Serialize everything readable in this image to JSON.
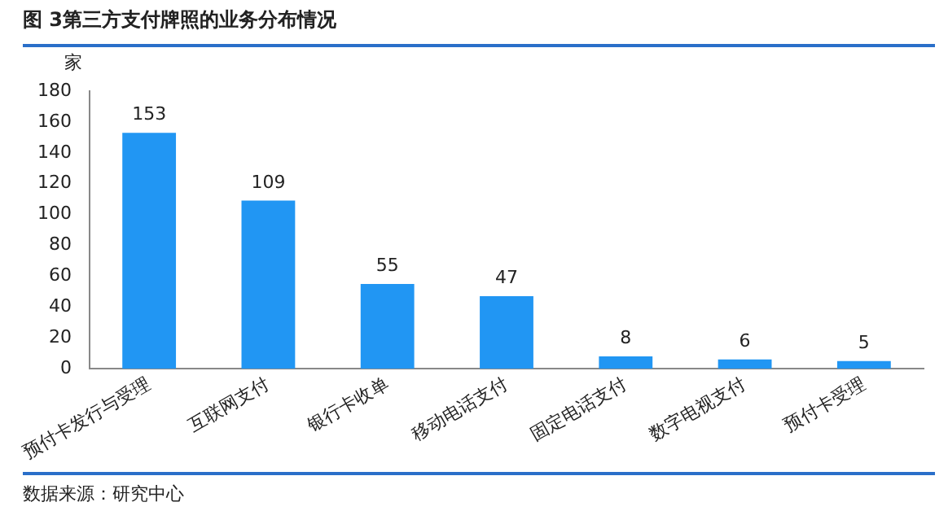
{
  "chart_data": {
    "type": "bar",
    "title": "图 3第三方支付牌照的业务分布情况",
    "ylabel": "家",
    "categories": [
      "预付卡发行与受理",
      "互联网支付",
      "银行卡收单",
      "移动电话支付",
      "固定电话支付",
      "数字电视支付",
      "预付卡受理"
    ],
    "values": [
      153,
      109,
      55,
      47,
      8,
      6,
      5
    ],
    "color": "#2196f3",
    "ylim": [
      0,
      180
    ],
    "yticks": [
      0,
      20,
      40,
      60,
      80,
      100,
      120,
      140,
      160,
      180
    ],
    "grid": false,
    "legend": false,
    "data_labels": true,
    "annotations": [
      "数据来源：研究中心"
    ]
  }
}
